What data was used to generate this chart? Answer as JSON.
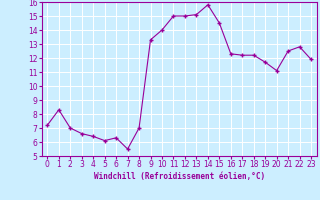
{
  "x": [
    0,
    1,
    2,
    3,
    4,
    5,
    6,
    7,
    8,
    9,
    10,
    11,
    12,
    13,
    14,
    15,
    16,
    17,
    18,
    19,
    20,
    21,
    22,
    23
  ],
  "y": [
    7.2,
    8.3,
    7.0,
    6.6,
    6.4,
    6.1,
    6.3,
    5.5,
    7.0,
    13.3,
    14.0,
    15.0,
    15.0,
    15.1,
    15.8,
    14.5,
    12.3,
    12.2,
    12.2,
    11.7,
    11.1,
    12.5,
    12.8,
    11.9
  ],
  "line_color": "#990099",
  "marker": "+",
  "marker_size": 3.5,
  "marker_linewidth": 1.0,
  "line_width": 0.8,
  "xlabel": "Windchill (Refroidissement éolien,°C)",
  "ylim": [
    5,
    16
  ],
  "xlim": [
    -0.5,
    23.5
  ],
  "yticks": [
    5,
    6,
    7,
    8,
    9,
    10,
    11,
    12,
    13,
    14,
    15,
    16
  ],
  "xticks": [
    0,
    1,
    2,
    3,
    4,
    5,
    6,
    7,
    8,
    9,
    10,
    11,
    12,
    13,
    14,
    15,
    16,
    17,
    18,
    19,
    20,
    21,
    22,
    23
  ],
  "background_color": "#cceeff",
  "grid_color": "#ffffff",
  "line_color_axes": "#990099",
  "tick_label_color": "#990099",
  "xlabel_color": "#990099",
  "xlabel_fontsize": 5.5,
  "tick_fontsize": 5.5
}
